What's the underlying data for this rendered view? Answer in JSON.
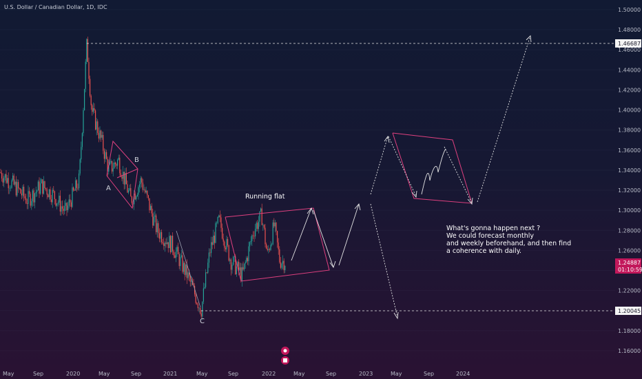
{
  "header": {
    "title": "U.S. Dollar / Canadian Dollar, 1D, IDC"
  },
  "price_axis": {
    "ticks": [
      "1.50000",
      "1.48000",
      "1.46000",
      "1.44000",
      "1.42000",
      "1.40000",
      "1.38000",
      "1.36000",
      "1.34000",
      "1.32000",
      "1.30000",
      "1.28000",
      "1.26000",
      "1.24000",
      "1.22000",
      "1.20000",
      "1.18000",
      "1.16000"
    ],
    "current_price": "1.24887",
    "countdown": "01:10:59",
    "level_high": "1.46687",
    "level_low": "1.20045"
  },
  "time_axis": {
    "labels": [
      "May",
      "Sep",
      "2020",
      "May",
      "Sep",
      "2021",
      "May",
      "Sep",
      "2022",
      "May",
      "Sep",
      "2023",
      "May",
      "Sep",
      "2024"
    ]
  },
  "annotations": {
    "wave_a": "A",
    "wave_b": "B",
    "wave_c": "C",
    "running_flat": "Running flat",
    "note_lines": [
      "What's gonna happen next ?",
      "We could forecast monthly",
      "and weekly beforehand, and then find",
      "a coherence with daily."
    ]
  },
  "colors": {
    "up": "#26a69a",
    "down": "#ef5350",
    "channel": "#e0407f",
    "price_tag": "#c2185b",
    "projection": "#e6e6e6"
  },
  "chart_data": {
    "type": "candlestick",
    "title": "U.S. Dollar / Canadian Dollar, 1D, IDC",
    "ylim": [
      1.15,
      1.51
    ],
    "y_ticks": [
      1.16,
      1.18,
      1.2,
      1.22,
      1.24,
      1.26,
      1.28,
      1.3,
      1.32,
      1.34,
      1.36,
      1.38,
      1.4,
      1.42,
      1.44,
      1.46,
      1.48,
      1.5
    ],
    "price_path": [
      {
        "date": "2019-03",
        "close": 1.338
      },
      {
        "date": "2019-05",
        "close": 1.325
      },
      {
        "date": "2019-07",
        "close": 1.31
      },
      {
        "date": "2019-09",
        "close": 1.325
      },
      {
        "date": "2019-11",
        "close": 1.315
      },
      {
        "date": "2019-12-31",
        "close": 1.298
      },
      {
        "date": "2020-02",
        "close": 1.33
      },
      {
        "date": "2020-03-19",
        "close": 1.466
      },
      {
        "date": "2020-04",
        "close": 1.4
      },
      {
        "date": "2020-05",
        "close": 1.37
      },
      {
        "date": "2020-06",
        "close": 1.34
      },
      {
        "date": "2020-07",
        "close": 1.35
      },
      {
        "date": "2020-09",
        "close": 1.31
      },
      {
        "date": "2020-10",
        "close": 1.33
      },
      {
        "date": "2020-12",
        "close": 1.28
      },
      {
        "date": "2021-02",
        "close": 1.265
      },
      {
        "date": "2021-04",
        "close": 1.235
      },
      {
        "date": "2021-06-01",
        "close": 1.2005
      },
      {
        "date": "2021-07",
        "close": 1.26
      },
      {
        "date": "2021-08",
        "close": 1.29
      },
      {
        "date": "2021-09",
        "close": 1.25
      },
      {
        "date": "2021-10",
        "close": 1.235
      },
      {
        "date": "2021-11",
        "close": 1.28
      },
      {
        "date": "2021-12",
        "close": 1.295
      },
      {
        "date": "2022-01",
        "close": 1.255
      },
      {
        "date": "2022-02",
        "close": 1.285
      },
      {
        "date": "2022-03",
        "close": 1.25
      },
      {
        "date": "2022-04",
        "close": 1.249
      }
    ],
    "levels": [
      1.46687,
      1.20045
    ],
    "last_price": 1.24887
  }
}
